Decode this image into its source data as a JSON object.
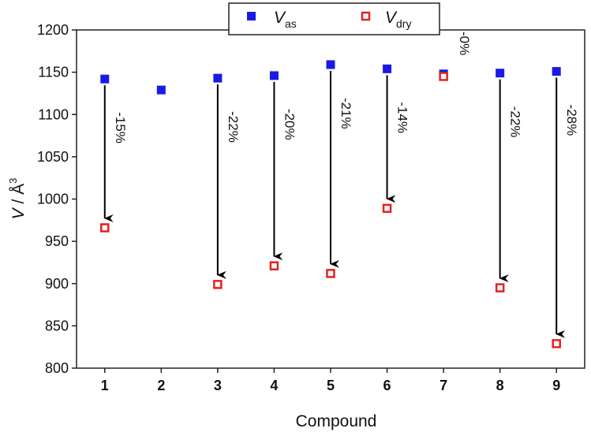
{
  "chart_data": {
    "type": "scatter",
    "categories": [
      "1",
      "2",
      "3",
      "4",
      "5",
      "6",
      "7",
      "8",
      "9"
    ],
    "x": [
      1,
      2,
      3,
      4,
      5,
      6,
      7,
      8,
      9
    ],
    "series": [
      {
        "name": "V_as",
        "legend_main": "V",
        "legend_sub": "as",
        "marker": "filled-square",
        "color": "#1a1ae6",
        "values": [
          1142,
          1129,
          1143,
          1146,
          1159,
          1154,
          1148,
          1149,
          1151
        ]
      },
      {
        "name": "V_dry",
        "legend_main": "V",
        "legend_sub": "dry",
        "marker": "open-square",
        "color": "#e62020",
        "values": [
          966,
          null,
          899,
          921,
          912,
          989,
          1145,
          895,
          829
        ]
      }
    ],
    "annotations": [
      {
        "x": 1,
        "label": "-15%"
      },
      {
        "x": 3,
        "label": "-22%"
      },
      {
        "x": 4,
        "label": "-20%"
      },
      {
        "x": 5,
        "label": "-21%"
      },
      {
        "x": 6,
        "label": "-14%"
      },
      {
        "x": 7,
        "label": "-0%"
      },
      {
        "x": 8,
        "label": "-22%"
      },
      {
        "x": 9,
        "label": "-28%"
      }
    ],
    "xlabel": "Compound",
    "ylabel_main": "V",
    "ylabel_rest": " / Å",
    "ylabel_sup": "3",
    "xlim": [
      0.5,
      9.5
    ],
    "ylim": [
      800,
      1200
    ],
    "yticks": [
      800,
      850,
      900,
      950,
      1000,
      1050,
      1100,
      1150,
      1200
    ],
    "grid": false,
    "legend_position": "top-center"
  }
}
